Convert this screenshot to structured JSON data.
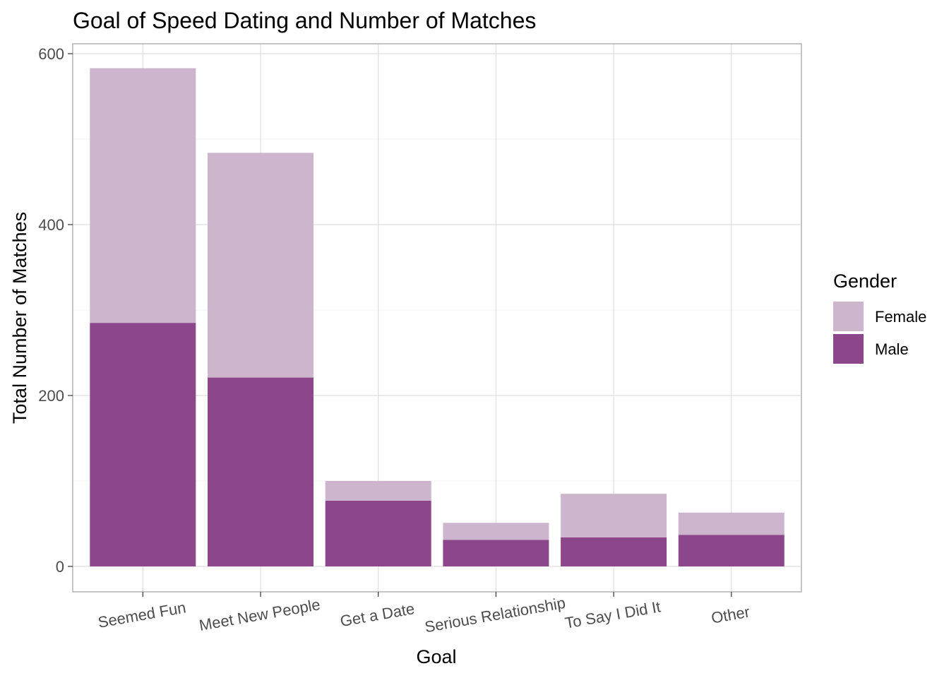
{
  "chart_data": {
    "type": "bar",
    "stacked": true,
    "title": "Goal of Speed Dating and Number of Matches",
    "xlabel": "Goal",
    "ylabel": "Total Number of Matches",
    "categories": [
      "Seemed Fun",
      "Meet New People",
      "Get a Date",
      "Serious Relationship",
      "To Say I Did It",
      "Other"
    ],
    "series": [
      {
        "name": "Male",
        "color": "#8b4789",
        "values": [
          285,
          221,
          77,
          31,
          34,
          37
        ]
      },
      {
        "name": "Female",
        "color": "#cdb5cd",
        "values": [
          298,
          263,
          23,
          20,
          51,
          26
        ]
      }
    ],
    "ylim": [
      0,
      600
    ],
    "yticks": [
      0,
      200,
      400,
      600
    ],
    "grid": true,
    "legend": {
      "title": "Gender",
      "position": "right",
      "entries": [
        {
          "label": "Female",
          "color": "#cdb5cd"
        },
        {
          "label": "Male",
          "color": "#8b4789"
        }
      ]
    }
  }
}
